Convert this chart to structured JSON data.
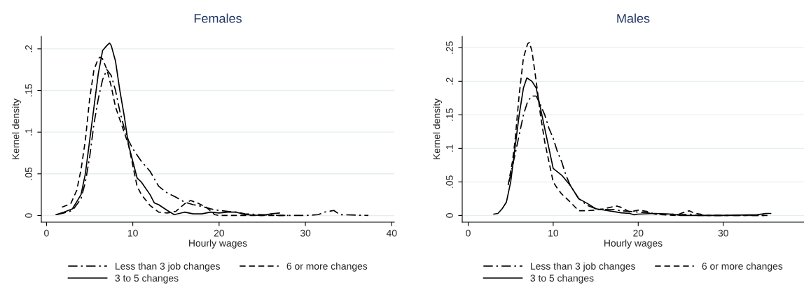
{
  "chart_data": [
    {
      "type": "line",
      "title": "Females",
      "xlabel": "Hourly wages",
      "ylabel": "Kernel density",
      "xlim": [
        -0.6,
        40.3
      ],
      "xticks": [
        0,
        10,
        20,
        30,
        40
      ],
      "ylim": [
        -0.008,
        0.215
      ],
      "yticks": [
        0,
        {
          "value": 0.05,
          "label": ".05"
        },
        {
          "value": 0.1,
          "label": ".1"
        },
        {
          "value": 0.15,
          "label": ".15"
        },
        {
          "value": 0.2,
          "label": ".2"
        }
      ],
      "grid": "y",
      "legend": "bottom",
      "series": [
        {
          "name": "Less than 3 job changes",
          "color": "#000000",
          "line_style": "dashdot",
          "x": [
            1.2,
            2,
            3,
            4,
            4.5,
            5,
            5.5,
            6,
            6.5,
            7,
            7.5,
            8,
            8.5,
            9,
            9.5,
            10,
            11,
            12,
            13,
            14,
            15,
            16,
            17,
            18,
            19,
            20,
            21,
            22,
            23,
            25,
            27,
            30,
            31.5,
            32.2,
            33.3,
            34,
            37.3
          ],
          "values": [
            0.001,
            0.003,
            0.006,
            0.02,
            0.04,
            0.07,
            0.11,
            0.14,
            0.163,
            0.175,
            0.168,
            0.15,
            0.125,
            0.105,
            0.09,
            0.08,
            0.065,
            0.053,
            0.035,
            0.027,
            0.022,
            0.016,
            0.013,
            0.011,
            0.008,
            0.006,
            0.005,
            0.004,
            0.002,
            0.001,
            0.0,
            0.0,
            0.001,
            0.004,
            0.006,
            0.001,
            0.0
          ]
        },
        {
          "name": "3 to 5 changes",
          "color": "#000000",
          "line_style": "solid",
          "x": [
            1.1,
            2,
            3,
            4,
            4.5,
            5,
            5.5,
            6,
            6.5,
            7,
            7.3,
            7.5,
            8,
            8.5,
            9,
            9.5,
            10,
            10.5,
            11,
            12,
            12.5,
            13,
            14,
            14.8,
            16,
            17,
            18,
            19,
            20,
            21,
            22,
            23,
            25,
            26,
            27
          ],
          "values": [
            0.001,
            0.004,
            0.008,
            0.025,
            0.05,
            0.09,
            0.13,
            0.17,
            0.198,
            0.204,
            0.207,
            0.204,
            0.185,
            0.15,
            0.12,
            0.085,
            0.065,
            0.045,
            0.04,
            0.025,
            0.015,
            0.013,
            0.006,
            0.001,
            0.004,
            0.002,
            0.002,
            0.004,
            0.003,
            0.004,
            0.004,
            0.001,
            0.0,
            0.002,
            0.003
          ]
        },
        {
          "name": "6 or more changes",
          "color": "#000000",
          "line_style": "dashed",
          "x": [
            1.8,
            2.8,
            3.5,
            4,
            4.5,
            5,
            5.5,
            6,
            6.2,
            6.5,
            7,
            7.5,
            8,
            8.5,
            9,
            9.5,
            10,
            10.5,
            11,
            12,
            13,
            14,
            15,
            16,
            16.7,
            17.5,
            18.5,
            19.5,
            20,
            25,
            28
          ],
          "values": [
            0.01,
            0.014,
            0.03,
            0.055,
            0.09,
            0.14,
            0.175,
            0.188,
            0.19,
            0.188,
            0.175,
            0.155,
            0.13,
            0.115,
            0.1,
            0.085,
            0.06,
            0.035,
            0.025,
            0.012,
            0.004,
            0.003,
            0.005,
            0.014,
            0.018,
            0.015,
            0.01,
            0.001,
            0.0,
            0.0,
            0.0
          ]
        }
      ]
    },
    {
      "type": "line",
      "title": "Males",
      "xlabel": "Hourly wages",
      "ylabel": "Kernel density",
      "xlim": [
        -0.7,
        39.5
      ],
      "xticks": [
        0,
        10,
        20,
        30
      ],
      "ylim": [
        -0.01,
        0.267
      ],
      "yticks": [
        0,
        {
          "value": 0.05,
          "label": ".05"
        },
        {
          "value": 0.1,
          "label": ".1"
        },
        {
          "value": 0.15,
          "label": ".15"
        },
        {
          "value": 0.2,
          "label": ".2"
        },
        {
          "value": 0.25,
          "label": ".25"
        }
      ],
      "grid": "y",
      "legend": "bottom",
      "series": [
        {
          "name": "Less than 3 job changes",
          "color": "#000000",
          "line_style": "dashdot",
          "x": [
            4.8,
            5.5,
            6,
            6.5,
            7,
            7.5,
            8,
            8.5,
            9,
            9.5,
            10,
            10.5,
            11,
            11.5,
            12,
            13,
            14,
            15,
            16,
            17,
            18,
            19,
            20,
            21,
            22,
            24,
            25,
            26,
            27,
            30,
            35
          ],
          "values": [
            0.05,
            0.09,
            0.12,
            0.15,
            0.17,
            0.178,
            0.178,
            0.165,
            0.15,
            0.13,
            0.115,
            0.095,
            0.08,
            0.06,
            0.045,
            0.025,
            0.015,
            0.01,
            0.009,
            0.009,
            0.007,
            0.006,
            0.005,
            0.004,
            0.002,
            0.002,
            0.001,
            0.002,
            0.0,
            0.0,
            0.0
          ]
        },
        {
          "name": "3 to 5 changes",
          "color": "#000000",
          "line_style": "solid",
          "x": [
            3,
            3.5,
            4,
            4.5,
            5,
            5.5,
            6,
            6.5,
            6.9,
            7.5,
            8,
            8.5,
            9,
            9.5,
            10,
            11,
            12,
            13,
            14,
            15,
            16,
            17,
            18,
            19,
            19.5,
            20,
            22,
            24,
            25,
            30,
            34,
            35,
            35.6
          ],
          "values": [
            0.002,
            0.003,
            0.01,
            0.02,
            0.05,
            0.1,
            0.15,
            0.19,
            0.205,
            0.2,
            0.19,
            0.16,
            0.13,
            0.1,
            0.07,
            0.06,
            0.045,
            0.025,
            0.018,
            0.01,
            0.008,
            0.006,
            0.004,
            0.003,
            0.001,
            0.002,
            0.003,
            0.002,
            0.0,
            0.0,
            0.001,
            0.003,
            0.003
          ]
        },
        {
          "name": "6 or more changes",
          "color": "#000000",
          "line_style": "dashed",
          "x": [
            4.7,
            5.2,
            5.5,
            6,
            6.5,
            7,
            7.2,
            7.5,
            8,
            8.5,
            9,
            9.5,
            10,
            10.5,
            11,
            12,
            13,
            14,
            15,
            16,
            17,
            17.5,
            18,
            19,
            20,
            21,
            22,
            23,
            24.5,
            25,
            26,
            26.5,
            28,
            35.5
          ],
          "values": [
            0.045,
            0.08,
            0.11,
            0.18,
            0.235,
            0.256,
            0.258,
            0.245,
            0.2,
            0.15,
            0.11,
            0.08,
            0.05,
            0.04,
            0.032,
            0.02,
            0.007,
            0.007,
            0.008,
            0.01,
            0.013,
            0.014,
            0.012,
            0.005,
            0.008,
            0.006,
            0.002,
            0.001,
            0.0,
            0.003,
            0.007,
            0.004,
            0.0,
            0.0
          ]
        }
      ]
    }
  ]
}
